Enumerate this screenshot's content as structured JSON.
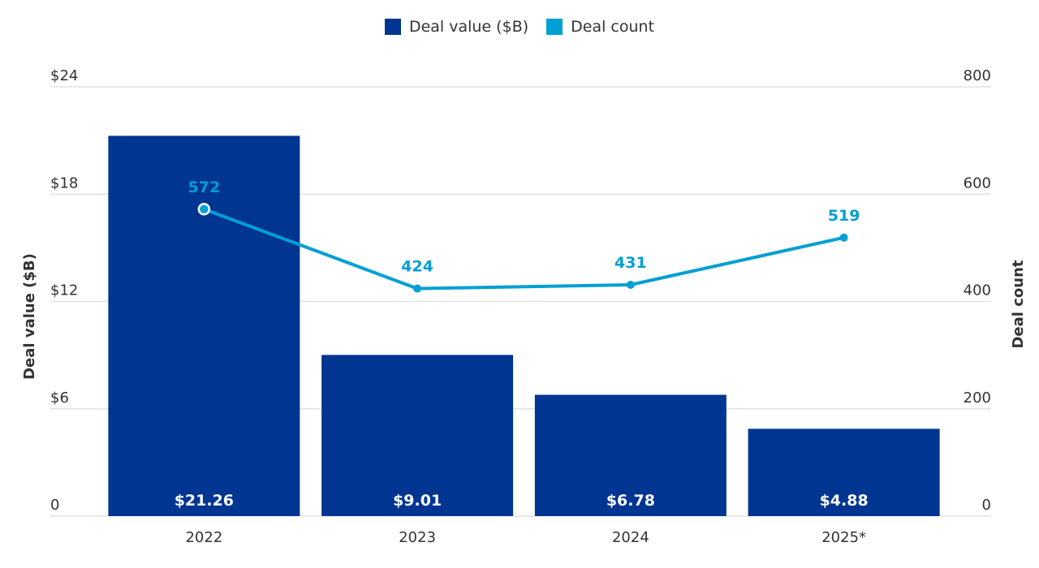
{
  "chart_data": {
    "type": "bar",
    "categories": [
      "2022",
      "2023",
      "2024",
      "2025*"
    ],
    "series": [
      {
        "name": "Deal value ($B)",
        "type": "bar",
        "axis": "left",
        "values": [
          21.26,
          9.01,
          6.78,
          4.88
        ],
        "labels": [
          "$21.26",
          "$9.01",
          "$6.78",
          "$4.88"
        ],
        "color": "#003591"
      },
      {
        "name": "Deal count",
        "type": "line",
        "axis": "right",
        "values": [
          572,
          424,
          431,
          519
        ],
        "labels": [
          "572",
          "424",
          "431",
          "519"
        ],
        "color": "#009fd4"
      }
    ],
    "ylabel": "Deal value ($B)",
    "y2label": "Deal count",
    "ylim": [
      0,
      24
    ],
    "y2lim": [
      0,
      800
    ],
    "yticks": [
      "0",
      "$6",
      "$12",
      "$18",
      "$24"
    ],
    "y2ticks": [
      "0",
      "200",
      "400",
      "600",
      "800"
    ],
    "grid": true,
    "legend_position": "top-center"
  }
}
